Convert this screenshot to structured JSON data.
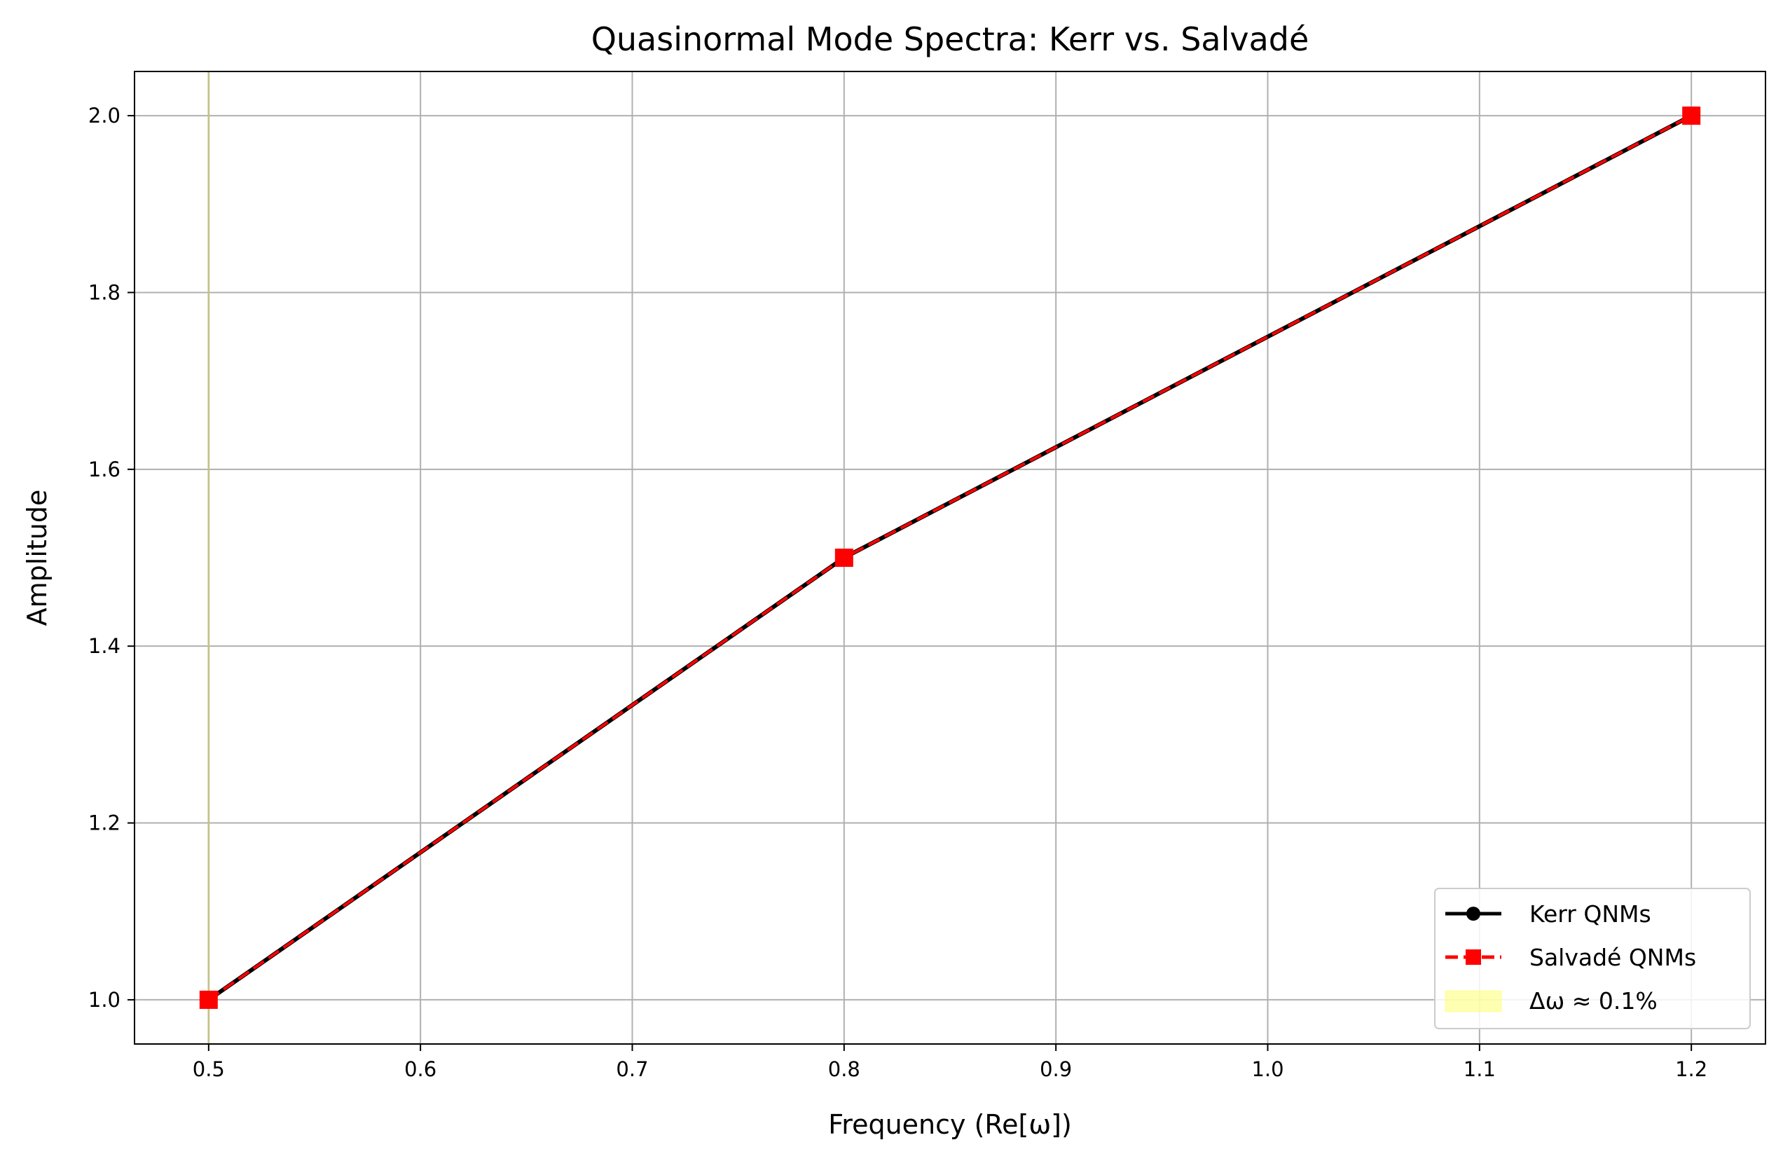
{
  "chart_data": {
    "type": "line",
    "title": "Quasinormal Mode Spectra: Kerr vs. Salvadé",
    "xlabel": "Frequency (Re[ω])",
    "ylabel": "Amplitude",
    "xlim": [
      0.465,
      1.235
    ],
    "ylim": [
      0.95,
      2.05
    ],
    "xticks": [
      0.5,
      0.6,
      0.7,
      0.8,
      0.9,
      1.0,
      1.1,
      1.2
    ],
    "xtick_labels": [
      "0.5",
      "0.6",
      "0.7",
      "0.8",
      "0.9",
      "1.0",
      "1.1",
      "1.2"
    ],
    "yticks": [
      1.0,
      1.2,
      1.4,
      1.6,
      1.8,
      2.0
    ],
    "ytick_labels": [
      "1.0",
      "1.2",
      "1.4",
      "1.6",
      "1.8",
      "2.0"
    ],
    "grid": true,
    "legend_position": "lower-right",
    "series": [
      {
        "name": "Kerr QNMs",
        "x": [
          0.5,
          0.8,
          1.2
        ],
        "y": [
          1.0,
          1.5,
          2.0
        ],
        "color": "#000000",
        "linestyle": "solid",
        "marker": "circle"
      },
      {
        "name": "Salvadé QNMs",
        "x": [
          0.5,
          0.8,
          1.2
        ],
        "y": [
          1.0,
          1.5,
          2.0
        ],
        "color": "#ff0000",
        "linestyle": "dashed",
        "marker": "square"
      }
    ],
    "band": {
      "name": "Δω ≈ 0.1%",
      "x_range": [
        0.4995,
        0.5005
      ],
      "color": "#ffff66"
    }
  }
}
